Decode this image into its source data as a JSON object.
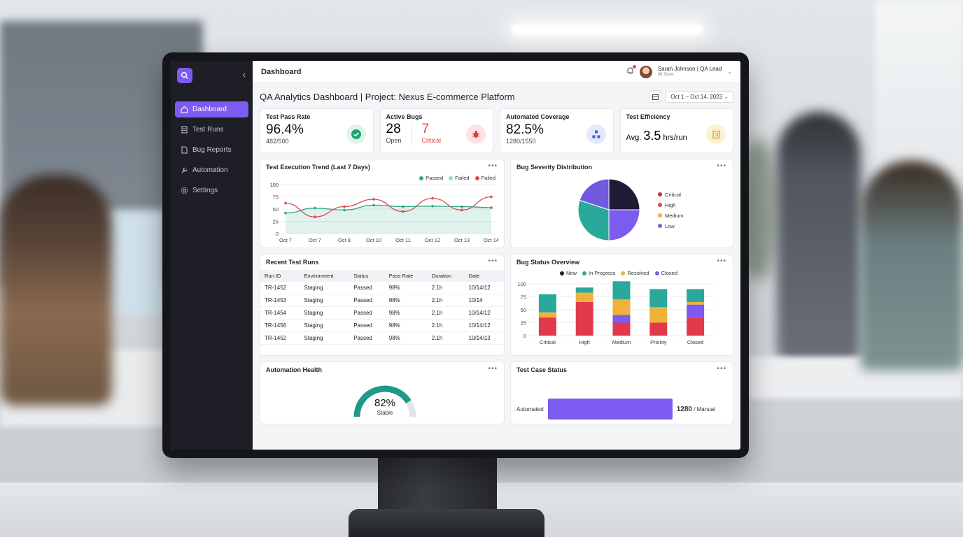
{
  "sidebar": {
    "items": [
      {
        "label": "Dashboard",
        "icon": "home-icon",
        "active": true
      },
      {
        "label": "Test Runs",
        "icon": "document-icon",
        "active": false
      },
      {
        "label": "Bug Reports",
        "icon": "file-icon",
        "active": false
      },
      {
        "label": "Automation",
        "icon": "wrench-icon",
        "active": false
      },
      {
        "label": "Settings",
        "icon": "gear-icon",
        "active": false
      }
    ]
  },
  "topbar": {
    "title": "Dashboard",
    "user_name": "Sarah Johnson | QA Lead",
    "user_sub": "96 Store"
  },
  "header": {
    "page_title": "QA Analytics Dashboard | Project: Nexus E-commerce Platform",
    "date_range": "Oct 1 – Oct 14, 2023"
  },
  "kpis": {
    "pass_rate": {
      "label": "Test Pass Rate",
      "value": "96.4%",
      "sub": "482/500"
    },
    "active_bugs": {
      "label": "Active Bugs",
      "open_value": "28",
      "open_label": "Open",
      "critical_value": "7",
      "critical_label": "Critical"
    },
    "coverage": {
      "label": "Automated Coverage",
      "value": "82.5%",
      "sub": "1280/1550"
    },
    "efficiency": {
      "label": "Test Efficiency",
      "prefix": "Avg.",
      "value": "3.5",
      "unit": "hrs/run"
    }
  },
  "trend": {
    "title": "Test Execution Trend (Last 7 Days)",
    "legend": [
      "Passed",
      "Failed",
      "Failed"
    ]
  },
  "severity": {
    "title": "Bug Severity Distribution",
    "legend": [
      "Critical",
      "High",
      "Medium",
      "Low"
    ]
  },
  "runs": {
    "title": "Recent Test Runs",
    "columns": [
      "Run ID",
      "Environment",
      "Status",
      "Pass Rate",
      "Duration",
      "Date"
    ],
    "rows": [
      [
        "TR-1452",
        "Staging",
        "Passed",
        "98%",
        "2.1h",
        "10/14/12"
      ],
      [
        "TR-1453",
        "Staging",
        "Passed",
        "98%",
        "2.1h",
        "10/14"
      ],
      [
        "TR-1454",
        "Staging",
        "Passed",
        "98%",
        "2.1h",
        "10/14/12"
      ],
      [
        "TR-1456",
        "Staging",
        "Passed",
        "98%",
        "2.1h",
        "10/14/12"
      ],
      [
        "TR-1452",
        "Staging",
        "Passed",
        "98%",
        "2.1h",
        "10/14/13"
      ]
    ]
  },
  "bug_status": {
    "title": "Bug Status Overview",
    "legend": [
      "New",
      "In Progress",
      "Resolved",
      "Closed"
    ]
  },
  "automation_health": {
    "title": "Automation Health",
    "value": "82%",
    "label": "Stable",
    "level": 0.82
  },
  "test_case_status": {
    "title": "Test Case Status",
    "bar_label": "Automated",
    "bar_value": "1280",
    "bar_suffix": "/ Manual"
  },
  "colors": {
    "accent": "#7c5cf0",
    "passed": "#2aa889",
    "failed": "#e04848",
    "critical": "#e04848",
    "high": "#1f1d33",
    "medium": "#2aa89a",
    "low": "#7c5cf0",
    "in_progress": "#2aa89a",
    "resolved": "#f0b23a",
    "closed": "#7c5cf0"
  },
  "chart_data": [
    {
      "type": "line",
      "title": "Test Execution Trend (Last 7 Days)",
      "x": [
        "Oct 7",
        "Oct 7",
        "Oct 9",
        "Oct 10",
        "Oct 11",
        "Oct 12",
        "Oct 13",
        "Oct 14"
      ],
      "ylim": [
        0,
        100
      ],
      "yticks": [
        100,
        75,
        50,
        25,
        0
      ],
      "grid": true,
      "legend_position": "top-right",
      "series": [
        {
          "name": "Passed",
          "values": [
            42,
            52,
            48,
            58,
            55,
            56,
            55,
            53
          ],
          "color": "#2aa889",
          "area": true
        },
        {
          "name": "Failed",
          "values": [
            62,
            34,
            55,
            70,
            45,
            72,
            48,
            75
          ],
          "color": "#e04848"
        }
      ]
    },
    {
      "type": "pie",
      "title": "Bug Severity Distribution",
      "categories": [
        "Critical",
        "High",
        "Medium",
        "Low"
      ],
      "values": [
        25,
        25,
        30,
        20
      ],
      "legend_position": "right"
    },
    {
      "type": "bar",
      "title": "Bug Status Overview",
      "categories": [
        "Critical",
        "High",
        "Medium",
        "Priority",
        "Closed"
      ],
      "ylim": [
        0,
        100
      ],
      "yticks": [
        100,
        75,
        50,
        25,
        0
      ],
      "stacked": true,
      "legend_position": "top",
      "series": [
        {
          "name": "In Progress",
          "values": [
            35,
            10,
            35,
            35,
            25
          ]
        },
        {
          "name": "Resolved",
          "values": [
            10,
            18,
            30,
            30,
            5
          ]
        },
        {
          "name": "Closed",
          "values": [
            0,
            0,
            15,
            0,
            25
          ]
        },
        {
          "name": "Critical",
          "values": [
            35,
            65,
            25,
            25,
            35
          ]
        }
      ]
    },
    {
      "type": "bar",
      "title": "Test Case Status",
      "categories": [
        "Automated"
      ],
      "values": [
        1280
      ]
    }
  ]
}
